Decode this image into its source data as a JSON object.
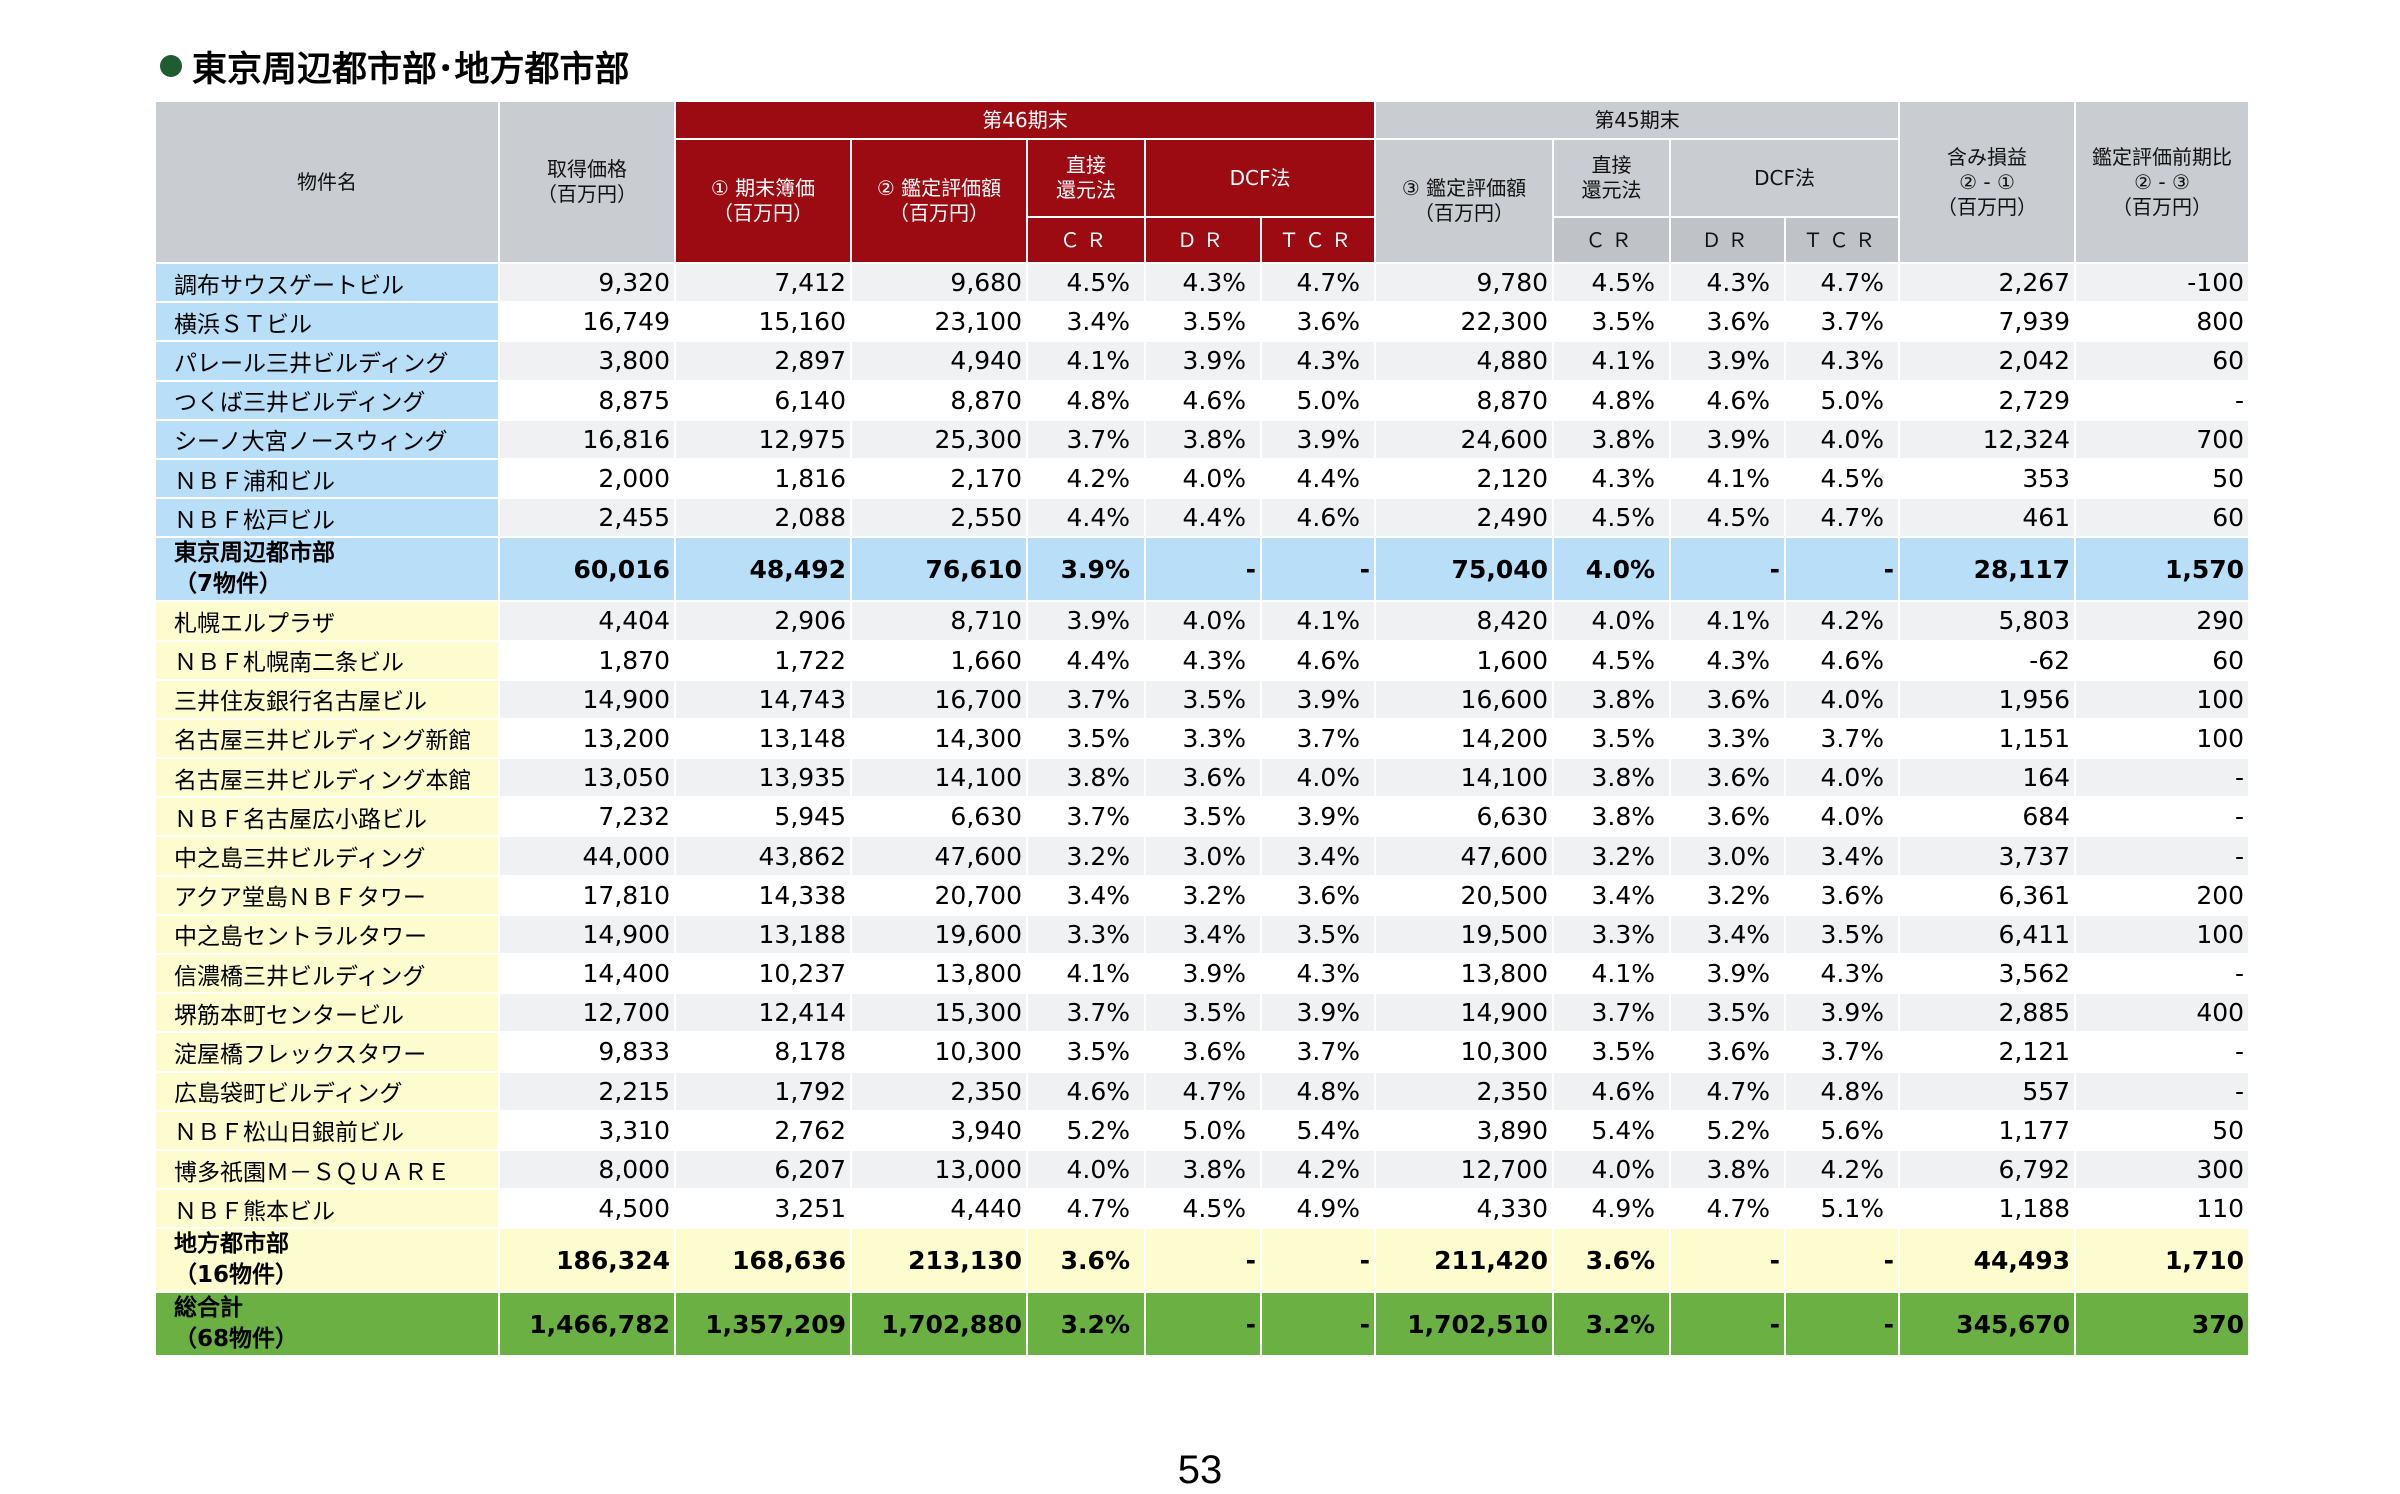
{
  "title": "東京周辺都市部･地方都市部",
  "header": {
    "property_name": "物件名",
    "acquisition_price": "取得価格\n（百万円）",
    "period46": "第46期末",
    "period45": "第45期末",
    "book_value": "① 期末簿価\n（百万円）",
    "appraisal46": "② 鑑定評価額\n（百万円）",
    "direct_cap": "直接\n還元法",
    "dcf46": "DCF法",
    "appraisal45": "③ 鑑定評価額\n（百万円）",
    "direct_cap45": "直接\n還元法",
    "dcf45": "DCF法",
    "unrealized": "含み損益\n② - ①\n（百万円）",
    "appraisal_change": "鑑定評価前期比\n② - ③\n（百万円）",
    "cr": "ＣＲ",
    "dr": "ＤＲ",
    "tcr": "ＴＣＲ",
    "cr45": "ＣＲ",
    "dr45": "ＤＲ",
    "tcr45": "ＴＣＲ"
  },
  "rows": [
    {
      "name": "調布サウスゲートビル",
      "v": [
        "9,320",
        "7,412",
        "9,680",
        "4.5%",
        "4.3%",
        "4.7%",
        "9,780",
        "4.5%",
        "4.3%",
        "4.7%",
        "2,267",
        "-100"
      ]
    },
    {
      "name": "横浜ＳＴビル",
      "v": [
        "16,749",
        "15,160",
        "23,100",
        "3.4%",
        "3.5%",
        "3.6%",
        "22,300",
        "3.5%",
        "3.6%",
        "3.7%",
        "7,939",
        "800"
      ]
    },
    {
      "name": "パレール三井ビルディング",
      "v": [
        "3,800",
        "2,897",
        "4,940",
        "4.1%",
        "3.9%",
        "4.3%",
        "4,880",
        "4.1%",
        "3.9%",
        "4.3%",
        "2,042",
        "60"
      ]
    },
    {
      "name": "つくば三井ビルディング",
      "v": [
        "8,875",
        "6,140",
        "8,870",
        "4.8%",
        "4.6%",
        "5.0%",
        "8,870",
        "4.8%",
        "4.6%",
        "5.0%",
        "2,729",
        "-"
      ]
    },
    {
      "name": "シーノ大宮ノースウィング",
      "v": [
        "16,816",
        "12,975",
        "25,300",
        "3.7%",
        "3.8%",
        "3.9%",
        "24,600",
        "3.8%",
        "3.9%",
        "4.0%",
        "12,324",
        "700"
      ]
    },
    {
      "name": "ＮＢＦ浦和ビル",
      "v": [
        "2,000",
        "1,816",
        "2,170",
        "4.2%",
        "4.0%",
        "4.4%",
        "2,120",
        "4.3%",
        "4.1%",
        "4.5%",
        "353",
        "50"
      ]
    },
    {
      "name": "ＮＢＦ松戸ビル",
      "v": [
        "2,455",
        "2,088",
        "2,550",
        "4.4%",
        "4.4%",
        "4.6%",
        "2,490",
        "4.5%",
        "4.5%",
        "4.7%",
        "461",
        "60"
      ]
    },
    {
      "name": "札幌エルプラザ",
      "v": [
        "4,404",
        "2,906",
        "8,710",
        "3.9%",
        "4.0%",
        "4.1%",
        "8,420",
        "4.0%",
        "4.1%",
        "4.2%",
        "5,803",
        "290"
      ]
    },
    {
      "name": "ＮＢＦ札幌南二条ビル",
      "v": [
        "1,870",
        "1,722",
        "1,660",
        "4.4%",
        "4.3%",
        "4.6%",
        "1,600",
        "4.5%",
        "4.3%",
        "4.6%",
        "-62",
        "60"
      ]
    },
    {
      "name": "三井住友銀行名古屋ビル",
      "v": [
        "14,900",
        "14,743",
        "16,700",
        "3.7%",
        "3.5%",
        "3.9%",
        "16,600",
        "3.8%",
        "3.6%",
        "4.0%",
        "1,956",
        "100"
      ]
    },
    {
      "name": "名古屋三井ビルディング新館",
      "v": [
        "13,200",
        "13,148",
        "14,300",
        "3.5%",
        "3.3%",
        "3.7%",
        "14,200",
        "3.5%",
        "3.3%",
        "3.7%",
        "1,151",
        "100"
      ]
    },
    {
      "name": "名古屋三井ビルディング本館",
      "v": [
        "13,050",
        "13,935",
        "14,100",
        "3.8%",
        "3.6%",
        "4.0%",
        "14,100",
        "3.8%",
        "3.6%",
        "4.0%",
        "164",
        "-"
      ]
    },
    {
      "name": "ＮＢＦ名古屋広小路ビル",
      "v": [
        "7,232",
        "5,945",
        "6,630",
        "3.7%",
        "3.5%",
        "3.9%",
        "6,630",
        "3.8%",
        "3.6%",
        "4.0%",
        "684",
        "-"
      ]
    },
    {
      "name": "中之島三井ビルディング",
      "v": [
        "44,000",
        "43,862",
        "47,600",
        "3.2%",
        "3.0%",
        "3.4%",
        "47,600",
        "3.2%",
        "3.0%",
        "3.4%",
        "3,737",
        "-"
      ]
    },
    {
      "name": "アクア堂島ＮＢＦタワー",
      "v": [
        "17,810",
        "14,338",
        "20,700",
        "3.4%",
        "3.2%",
        "3.6%",
        "20,500",
        "3.4%",
        "3.2%",
        "3.6%",
        "6,361",
        "200"
      ]
    },
    {
      "name": "中之島セントラルタワー",
      "v": [
        "14,900",
        "13,188",
        "19,600",
        "3.3%",
        "3.4%",
        "3.5%",
        "19,500",
        "3.3%",
        "3.4%",
        "3.5%",
        "6,411",
        "100"
      ]
    },
    {
      "name": "信濃橋三井ビルディング",
      "v": [
        "14,400",
        "10,237",
        "13,800",
        "4.1%",
        "3.9%",
        "4.3%",
        "13,800",
        "4.1%",
        "3.9%",
        "4.3%",
        "3,562",
        "-"
      ]
    },
    {
      "name": "堺筋本町センタービル",
      "v": [
        "12,700",
        "12,414",
        "15,300",
        "3.7%",
        "3.5%",
        "3.9%",
        "14,900",
        "3.7%",
        "3.5%",
        "3.9%",
        "2,885",
        "400"
      ]
    },
    {
      "name": "淀屋橋フレックスタワー",
      "v": [
        "9,833",
        "8,178",
        "10,300",
        "3.5%",
        "3.6%",
        "3.7%",
        "10,300",
        "3.5%",
        "3.6%",
        "3.7%",
        "2,121",
        "-"
      ]
    },
    {
      "name": "広島袋町ビルディング",
      "v": [
        "2,215",
        "1,792",
        "2,350",
        "4.6%",
        "4.7%",
        "4.8%",
        "2,350",
        "4.6%",
        "4.7%",
        "4.8%",
        "557",
        "-"
      ]
    },
    {
      "name": "ＮＢＦ松山日銀前ビル",
      "v": [
        "3,310",
        "2,762",
        "3,940",
        "5.2%",
        "5.0%",
        "5.4%",
        "3,890",
        "5.4%",
        "5.2%",
        "5.6%",
        "1,177",
        "50"
      ]
    },
    {
      "name": "博多祇園Ｍ－ＳＱＵＡＲＥ",
      "v": [
        "8,000",
        "6,207",
        "13,000",
        "4.0%",
        "3.8%",
        "4.2%",
        "12,700",
        "4.0%",
        "3.8%",
        "4.2%",
        "6,792",
        "300"
      ]
    },
    {
      "name": "ＮＢＦ熊本ビル",
      "v": [
        "4,500",
        "3,251",
        "4,440",
        "4.7%",
        "4.5%",
        "4.9%",
        "4,330",
        "4.9%",
        "4.7%",
        "5.1%",
        "1,188",
        "110"
      ]
    }
  ],
  "subtotal_tokyo": {
    "name": "東京周辺都市部\n（7物件）",
    "v": [
      "60,016",
      "48,492",
      "76,610",
      "3.9%",
      "-",
      "-",
      "75,040",
      "4.0%",
      "-",
      "-",
      "28,117",
      "1,570"
    ]
  },
  "subtotal_regional": {
    "name": "地方都市部\n（16物件）",
    "v": [
      "186,324",
      "168,636",
      "213,130",
      "3.6%",
      "-",
      "-",
      "211,420",
      "3.6%",
      "-",
      "-",
      "44,493",
      "1,710"
    ]
  },
  "grand_total": {
    "name": "総合計\n（68物件）",
    "v": [
      "1,466,782",
      "1,357,209",
      "1,702,880",
      "3.2%",
      "-",
      "-",
      "1,702,510",
      "3.2%",
      "-",
      "-",
      "345,670",
      "370"
    ]
  },
  "page_number": "53",
  "colors": {
    "header_gray": "#c9ccd0",
    "header_red": "#9c0a12",
    "tokyo_blue": "#b9def7",
    "regional_yellow": "#fdfcce",
    "total_green": "#6ab043",
    "bullet_green": "#1f5c30"
  }
}
